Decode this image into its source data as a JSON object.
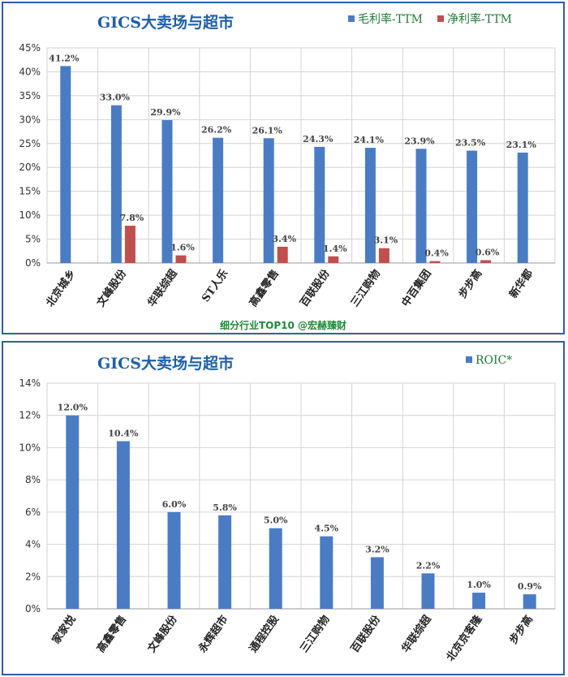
{
  "chart_data": [
    {
      "type": "bar",
      "title": "GICS大卖场与超市",
      "categories": [
        "北京城乡",
        "文峰股份",
        "华联综超",
        "ST人乐",
        "高鑫零售",
        "百联股份",
        "三江购物",
        "中百集团",
        "步步高",
        "新华都"
      ],
      "series": [
        {
          "name": "毛利率-TTM",
          "color": "#4a7cc4",
          "values": [
            41.2,
            33.0,
            29.9,
            26.2,
            26.1,
            24.3,
            24.1,
            23.9,
            23.5,
            23.1
          ],
          "labels": [
            "41.2%",
            "33.0%",
            "29.9%",
            "26.2%",
            "26.1%",
            "24.3%",
            "24.1%",
            "23.9%",
            "23.5%",
            "23.1%"
          ]
        },
        {
          "name": "净利率-TTM",
          "color": "#c0504d",
          "values": [
            null,
            7.8,
            1.6,
            null,
            3.4,
            1.4,
            3.1,
            0.4,
            0.6,
            null
          ],
          "labels": [
            "",
            "7.8%",
            "1.6%",
            "",
            "3.4%",
            "1.4%",
            "3.1%",
            "0.4%",
            "0.6%",
            ""
          ]
        }
      ],
      "ylim": [
        0,
        45
      ],
      "yticks": [
        "0%",
        "5%",
        "10%",
        "15%",
        "20%",
        "25%",
        "30%",
        "35%",
        "40%",
        "45%"
      ],
      "legend": "top-right",
      "grid": true,
      "note": "细分行业TOP10 @宏赫臻财"
    },
    {
      "type": "bar",
      "title": "GICS大卖场与超市",
      "categories": [
        "家家悦",
        "高鑫零售",
        "文峰股份",
        "永辉超市",
        "通程控股",
        "三江购物",
        "百联股份",
        "华联综超",
        "北京京客隆",
        "步步高"
      ],
      "series": [
        {
          "name": "ROIC*",
          "color": "#4a7cc4",
          "values": [
            12.0,
            10.4,
            6.0,
            5.8,
            5.0,
            4.5,
            3.2,
            2.2,
            1.0,
            0.9
          ],
          "labels": [
            "12.0%",
            "10.4%",
            "6.0%",
            "5.8%",
            "5.0%",
            "4.5%",
            "3.2%",
            "2.2%",
            "1.0%",
            "0.9%"
          ]
        }
      ],
      "ylim": [
        0,
        14
      ],
      "yticks": [
        "0%",
        "2%",
        "4%",
        "6%",
        "8%",
        "10%",
        "12%",
        "14%"
      ],
      "legend": "top-right",
      "grid": true
    }
  ]
}
